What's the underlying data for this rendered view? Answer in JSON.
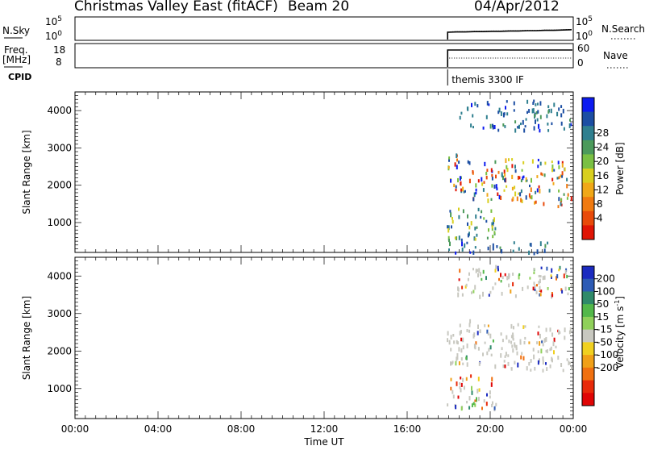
{
  "header": {
    "title": "Christmas Valley East (fitACF)",
    "beam": "Beam 20",
    "date": "04/Apr/2012"
  },
  "chart_data": [
    {
      "type": "line",
      "panel": "noise",
      "left_label": "N.Sky",
      "right_label": "N.Search",
      "left_ticks": [
        "10^5",
        "10^0"
      ],
      "right_ticks": [
        "10^5",
        "10^0"
      ],
      "x_range_hours": [
        0,
        24
      ],
      "data_start_hour": 17.95,
      "series": [
        {
          "name": "N.Sky",
          "style": "solid",
          "values": [
            1.5,
            1.6,
            1.6,
            1.7,
            1.7,
            1.8,
            1.8,
            1.9,
            1.9,
            2.0,
            2.0,
            2.1,
            2.1,
            2.2,
            2.3
          ]
        },
        {
          "name": "N.Search",
          "style": "dotted",
          "values": [
            1.6,
            1.7,
            1.7,
            1.8,
            1.8,
            1.9,
            1.9,
            2.0,
            2.0,
            2.1,
            2.1,
            2.2,
            2.2,
            2.3,
            2.4
          ]
        }
      ]
    },
    {
      "type": "line",
      "panel": "frequency",
      "left_label": "Freq.",
      "left_unit": "[MHz]",
      "right_label": "Nave",
      "left_ticks": [
        "18",
        "8"
      ],
      "right_ticks": [
        "60",
        "0"
      ],
      "cpid_label": "CPID",
      "cpid_text": "themis 3300 IF",
      "data_start_hour": 17.95,
      "series": [
        {
          "name": "Freq.",
          "style": "solid",
          "value_mhz": 18
        },
        {
          "name": "Nave",
          "style": "dotted",
          "value": 30
        }
      ]
    },
    {
      "type": "heatmap",
      "panel": "power",
      "ylabel": "Slant Range [km]",
      "yticks": [
        1000,
        2000,
        3000,
        4000
      ],
      "ylim": [
        200,
        4500
      ],
      "colorbar_label": "Power [dB]",
      "colorbar_ticks": [
        4,
        8,
        12,
        16,
        20,
        24,
        28
      ],
      "colorbar_colors": [
        "#0c1bf0",
        "#1c4ea3",
        "#2f7f8f",
        "#4c9a5b",
        "#7ac043",
        "#d8cf1f",
        "#f0a818",
        "#f07a10",
        "#e84a0a",
        "#e01505"
      ],
      "echo_regions": [
        {
          "hours": [
            18.4,
            23.9
          ],
          "range_km": [
            3500,
            4300
          ],
          "level": "low"
        },
        {
          "hours": [
            17.9,
            23.9
          ],
          "range_km": [
            1700,
            2900
          ],
          "level": "high"
        },
        {
          "hours": [
            17.9,
            20.3
          ],
          "range_km": [
            500,
            1400
          ],
          "level": "mixed"
        },
        {
          "hours": [
            17.9,
            23.0
          ],
          "range_km": [
            200,
            500
          ],
          "level": "low"
        }
      ]
    },
    {
      "type": "heatmap",
      "panel": "velocity",
      "ylabel": "Slant Range [km]",
      "yticks": [
        1000,
        2000,
        3000,
        4000
      ],
      "ylim": [
        200,
        4500
      ],
      "colorbar_label": "Velocity [m s",
      "colorbar_label_sup": "-1",
      "colorbar_label_end": "]",
      "colorbar_ticks": [
        200,
        100,
        50,
        15,
        -15,
        -50,
        -100,
        -200
      ],
      "colorbar_colors": [
        "#1b2bc0",
        "#2d5bb5",
        "#2f8a6a",
        "#53b84a",
        "#8fd05a",
        "#c8c8c0",
        "#f0d020",
        "#f0a018",
        "#f07010",
        "#e82a0a",
        "#e00505"
      ],
      "echo_regions": [
        {
          "hours": [
            18.4,
            23.9
          ],
          "range_km": [
            3500,
            4300
          ],
          "level": "gray-mixed"
        },
        {
          "hours": [
            17.9,
            23.9
          ],
          "range_km": [
            1700,
            2900
          ],
          "level": "gray"
        },
        {
          "hours": [
            17.9,
            20.3
          ],
          "range_km": [
            500,
            1400
          ],
          "level": "gray-mixed"
        }
      ]
    }
  ],
  "xaxis": {
    "label": "Time UT",
    "ticks": [
      "00:00",
      "04:00",
      "08:00",
      "12:00",
      "16:00",
      "20:00",
      "00:00"
    ],
    "range_hours": [
      0,
      24
    ]
  }
}
